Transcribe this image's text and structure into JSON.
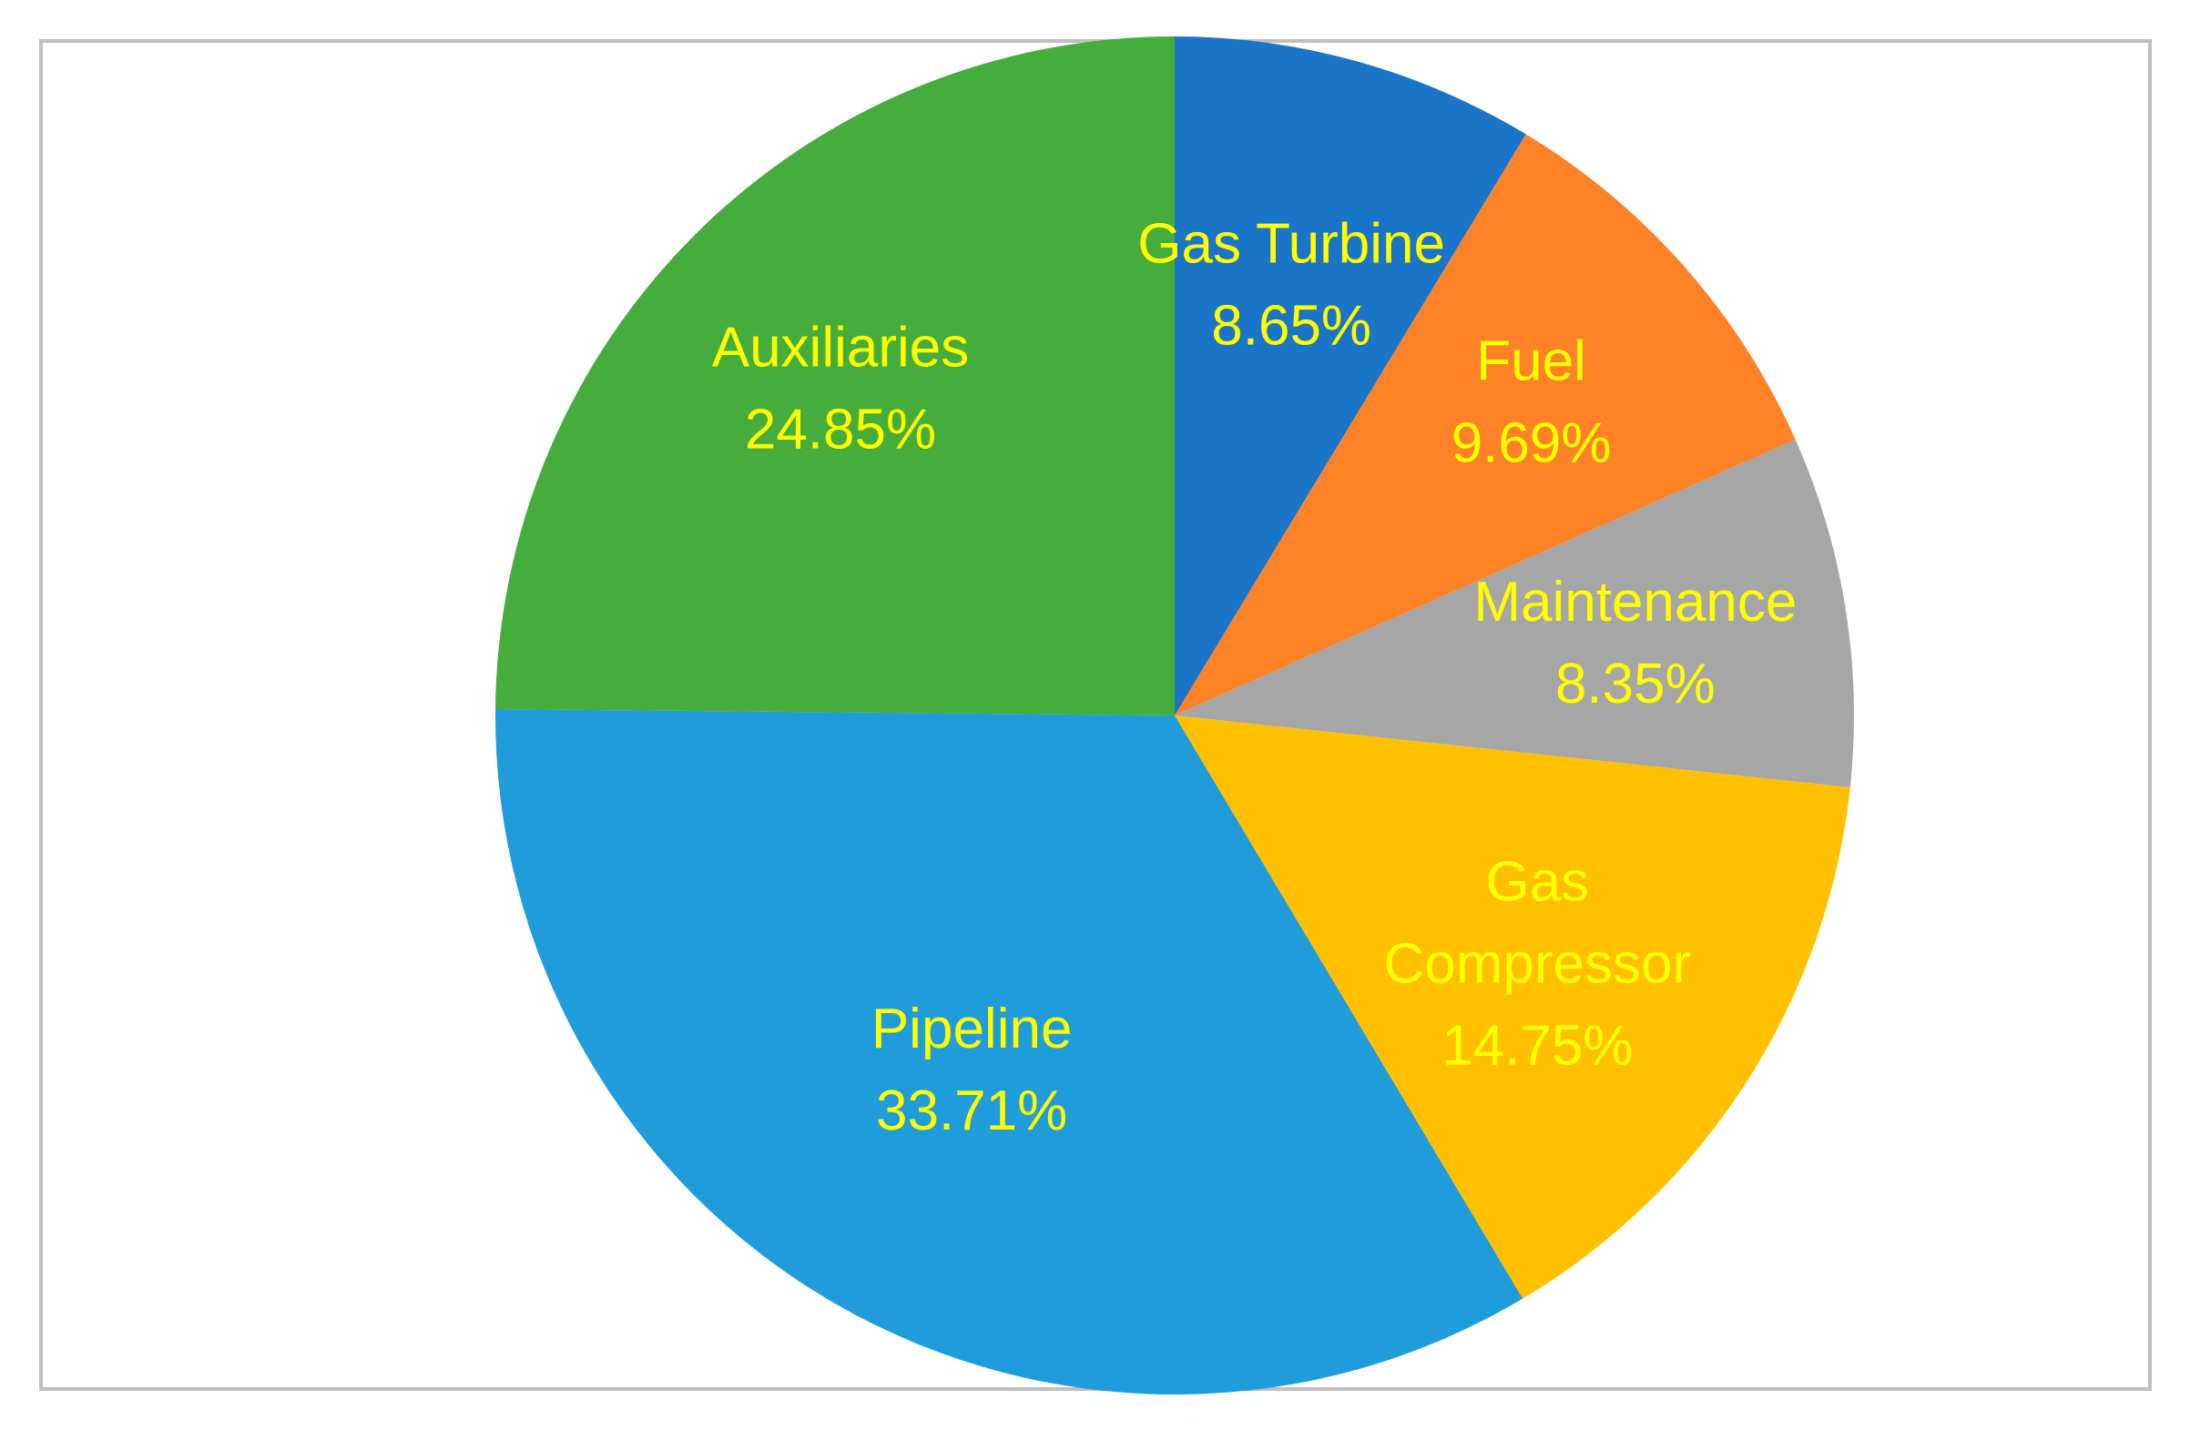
{
  "chart_data": {
    "type": "pie",
    "title": "",
    "start_angle_deg": 0,
    "direction": "clockwise",
    "label_color": "#ffff00",
    "slices": [
      {
        "name": "Gas Turbine",
        "value": 8.65,
        "label_lines": [
          "Gas Turbine",
          "8.65%"
        ],
        "color": "#1a74c8"
      },
      {
        "name": "Fuel",
        "value": 9.69,
        "label_lines": [
          "Fuel",
          "9.69%"
        ],
        "color": "#ff8226"
      },
      {
        "name": "Maintenance",
        "value": 8.35,
        "label_lines": [
          "Maintenance",
          "8.35%"
        ],
        "color": "#a6a6a6"
      },
      {
        "name": "Gas Compressor",
        "value": 14.75,
        "label_lines": [
          "Gas",
          "Compressor",
          "14.75%"
        ],
        "color": "#ffc000"
      },
      {
        "name": "Pipeline",
        "value": 33.71,
        "label_lines": [
          "Pipeline",
          "33.71%"
        ],
        "color": "#1f9cd9"
      },
      {
        "name": "Auxiliaries",
        "value": 24.85,
        "label_lines": [
          "Auxiliaries",
          "24.85%"
        ],
        "color": "#45ad3c"
      }
    ]
  }
}
